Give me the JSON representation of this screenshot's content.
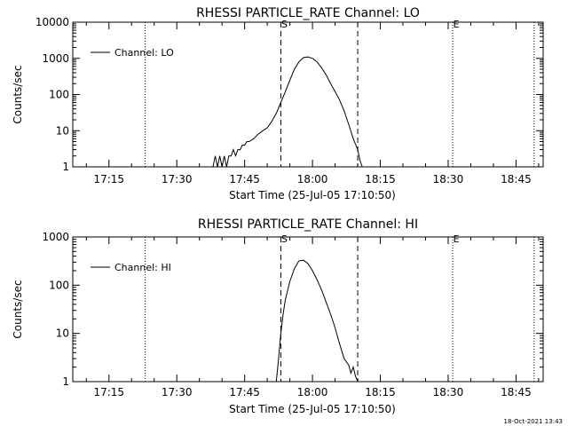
{
  "footer": {
    "timestamp": "18-Oct-2021 13:43"
  },
  "colors": {
    "background": "#ffffff",
    "foreground": "#000000"
  },
  "chart_data": [
    {
      "type": "line",
      "title": "RHESSI PARTICLE_RATE Channel: LO",
      "xlabel": "Start Time (25-Jul-05 17:10:50)",
      "ylabel": "Counts/sec",
      "yscale": "log",
      "xlim": [
        "17:07",
        "18:51"
      ],
      "ylim": [
        1,
        10000
      ],
      "xticks": [
        "17:15",
        "17:30",
        "17:45",
        "18:00",
        "18:15",
        "18:30",
        "18:45"
      ],
      "yticks": [
        "1",
        "10",
        "100",
        "1000",
        "10000"
      ],
      "legend": {
        "position": "top-left",
        "entries": [
          "Channel: LO"
        ]
      },
      "markers": [
        {
          "label": "S",
          "time": "17:53",
          "style": "dashed"
        },
        {
          "label": "E",
          "time": "18:31",
          "style": "dotted"
        }
      ],
      "vlines": [
        {
          "time": "17:23",
          "style": "dotted"
        },
        {
          "time": "17:53",
          "style": "dashed"
        },
        {
          "time": "18:10",
          "style": "dashed"
        },
        {
          "time": "18:31",
          "style": "dotted"
        },
        {
          "time": "18:49",
          "style": "dotted"
        }
      ],
      "series": [
        {
          "name": "Channel: LO",
          "x": [
            "17:38",
            "17:38.5",
            "17:39",
            "17:39.5",
            "17:40",
            "17:40.5",
            "17:41",
            "17:41.5",
            "17:42",
            "17:42.5",
            "17:43",
            "17:43.5",
            "17:44",
            "17:44.5",
            "17:45",
            "17:45.5",
            "17:46",
            "17:47",
            "17:48",
            "17:49",
            "17:50",
            "17:51",
            "17:52",
            "17:53",
            "17:54",
            "17:55",
            "17:56",
            "17:57",
            "17:58",
            "17:59",
            "18:00",
            "18:01",
            "18:02",
            "18:03",
            "18:04",
            "18:05",
            "18:06",
            "18:07",
            "18:08",
            "18:09",
            "18:10",
            "18:10.5",
            "18:11"
          ],
          "y": [
            1,
            2,
            1,
            2,
            1,
            2,
            1,
            2,
            2,
            3,
            2,
            3,
            3,
            4,
            4,
            5,
            5,
            6,
            8,
            10,
            12,
            18,
            30,
            60,
            120,
            250,
            500,
            800,
            1050,
            1100,
            1000,
            800,
            550,
            350,
            200,
            120,
            70,
            35,
            15,
            6,
            3,
            1.5,
            1
          ]
        }
      ]
    },
    {
      "type": "line",
      "title": "RHESSI PARTICLE_RATE Channel: HI",
      "xlabel": "Start Time (25-Jul-05 17:10:50)",
      "ylabel": "Counts/sec",
      "yscale": "log",
      "xlim": [
        "17:07",
        "18:51"
      ],
      "ylim": [
        1,
        1000
      ],
      "xticks": [
        "17:15",
        "17:30",
        "17:45",
        "18:00",
        "18:15",
        "18:30",
        "18:45"
      ],
      "yticks": [
        "1",
        "10",
        "100",
        "1000"
      ],
      "legend": {
        "position": "top-left",
        "entries": [
          "Channel: HI"
        ]
      },
      "markers": [
        {
          "label": "S",
          "time": "17:53",
          "style": "dashed"
        },
        {
          "label": "E",
          "time": "18:31",
          "style": "dotted"
        }
      ],
      "vlines": [
        {
          "time": "17:23",
          "style": "dotted"
        },
        {
          "time": "17:53",
          "style": "dashed"
        },
        {
          "time": "18:10",
          "style": "dashed"
        },
        {
          "time": "18:31",
          "style": "dotted"
        },
        {
          "time": "18:49",
          "style": "dotted"
        }
      ],
      "series": [
        {
          "name": "Channel: HI",
          "x": [
            "17:52",
            "17:52.5",
            "17:53",
            "17:53.5",
            "17:54",
            "17:55",
            "17:56",
            "17:57",
            "17:58",
            "17:59",
            "18:00",
            "18:01",
            "18:02",
            "18:03",
            "18:04",
            "18:05",
            "18:06",
            "18:07",
            "18:08",
            "18:08.5",
            "18:09",
            "18:09.5",
            "18:10"
          ],
          "y": [
            1,
            3,
            10,
            25,
            50,
            120,
            220,
            320,
            330,
            280,
            200,
            130,
            80,
            45,
            25,
            13,
            6,
            3,
            2.2,
            1.5,
            2,
            1.3,
            1
          ]
        }
      ]
    }
  ]
}
